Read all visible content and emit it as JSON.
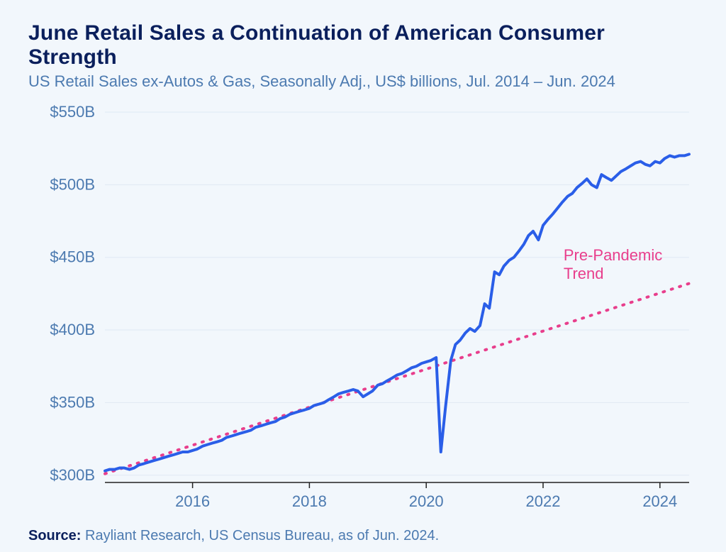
{
  "title": "June Retail Sales a Continuation of American Consumer Strength",
  "subtitle": "US Retail Sales ex-Autos & Gas, Seasonally Adj., US$ billions, Jul. 2014 – Jun. 2024",
  "source_label": "Source:",
  "source_text": " Rayliant Research, US Census Bureau, as of Jun. 2024.",
  "chart": {
    "type": "line",
    "background_color": "#f2f7fc",
    "grid_color": "#dfe8f3",
    "axis_color": "#222222",
    "ylim": [
      295,
      550
    ],
    "ytick_values": [
      300,
      350,
      400,
      450,
      500,
      550
    ],
    "ytick_labels": [
      "$300B",
      "$350B",
      "$400B",
      "$450B",
      "$500B",
      "$550B"
    ],
    "xlim": [
      2014.5,
      2024.5
    ],
    "xtick_values": [
      2016,
      2018,
      2020,
      2022,
      2024
    ],
    "xtick_labels": [
      "2016",
      "2018",
      "2020",
      "2022",
      "2024"
    ],
    "tick_fontsize": 22,
    "tick_color": "#4c7ab0",
    "series_actual": {
      "color": "#2a5ee8",
      "width": 4,
      "data": [
        [
          2014.5,
          303
        ],
        [
          2014.58,
          304
        ],
        [
          2014.67,
          304
        ],
        [
          2014.75,
          305
        ],
        [
          2014.83,
          305
        ],
        [
          2014.92,
          304
        ],
        [
          2015.0,
          305
        ],
        [
          2015.08,
          307
        ],
        [
          2015.17,
          308
        ],
        [
          2015.25,
          309
        ],
        [
          2015.33,
          310
        ],
        [
          2015.42,
          311
        ],
        [
          2015.5,
          312
        ],
        [
          2015.58,
          313
        ],
        [
          2015.67,
          314
        ],
        [
          2015.75,
          315
        ],
        [
          2015.83,
          316
        ],
        [
          2015.92,
          316
        ],
        [
          2016.0,
          317
        ],
        [
          2016.08,
          318
        ],
        [
          2016.17,
          320
        ],
        [
          2016.25,
          321
        ],
        [
          2016.33,
          322
        ],
        [
          2016.42,
          323
        ],
        [
          2016.5,
          324
        ],
        [
          2016.58,
          326
        ],
        [
          2016.67,
          327
        ],
        [
          2016.75,
          328
        ],
        [
          2016.83,
          329
        ],
        [
          2016.92,
          330
        ],
        [
          2017.0,
          331
        ],
        [
          2017.08,
          333
        ],
        [
          2017.17,
          334
        ],
        [
          2017.25,
          335
        ],
        [
          2017.33,
          336
        ],
        [
          2017.42,
          337
        ],
        [
          2017.5,
          339
        ],
        [
          2017.58,
          340
        ],
        [
          2017.67,
          342
        ],
        [
          2017.75,
          343
        ],
        [
          2017.83,
          344
        ],
        [
          2017.92,
          345
        ],
        [
          2018.0,
          346
        ],
        [
          2018.08,
          348
        ],
        [
          2018.17,
          349
        ],
        [
          2018.25,
          350
        ],
        [
          2018.33,
          352
        ],
        [
          2018.42,
          354
        ],
        [
          2018.5,
          356
        ],
        [
          2018.58,
          357
        ],
        [
          2018.67,
          358
        ],
        [
          2018.75,
          359
        ],
        [
          2018.83,
          358
        ],
        [
          2018.92,
          354
        ],
        [
          2019.0,
          356
        ],
        [
          2019.08,
          358
        ],
        [
          2019.17,
          362
        ],
        [
          2019.25,
          363
        ],
        [
          2019.33,
          365
        ],
        [
          2019.42,
          367
        ],
        [
          2019.5,
          369
        ],
        [
          2019.58,
          370
        ],
        [
          2019.67,
          372
        ],
        [
          2019.75,
          374
        ],
        [
          2019.83,
          375
        ],
        [
          2019.92,
          377
        ],
        [
          2020.0,
          378
        ],
        [
          2020.08,
          379
        ],
        [
          2020.17,
          381
        ],
        [
          2020.25,
          316
        ],
        [
          2020.33,
          347
        ],
        [
          2020.42,
          379
        ],
        [
          2020.5,
          390
        ],
        [
          2020.58,
          393
        ],
        [
          2020.67,
          398
        ],
        [
          2020.75,
          401
        ],
        [
          2020.83,
          399
        ],
        [
          2020.92,
          403
        ],
        [
          2021.0,
          418
        ],
        [
          2021.08,
          415
        ],
        [
          2021.17,
          440
        ],
        [
          2021.25,
          438
        ],
        [
          2021.33,
          444
        ],
        [
          2021.42,
          448
        ],
        [
          2021.5,
          450
        ],
        [
          2021.58,
          454
        ],
        [
          2021.67,
          459
        ],
        [
          2021.75,
          465
        ],
        [
          2021.83,
          468
        ],
        [
          2021.92,
          462
        ],
        [
          2022.0,
          472
        ],
        [
          2022.08,
          476
        ],
        [
          2022.17,
          480
        ],
        [
          2022.25,
          484
        ],
        [
          2022.33,
          488
        ],
        [
          2022.42,
          492
        ],
        [
          2022.5,
          494
        ],
        [
          2022.58,
          498
        ],
        [
          2022.67,
          501
        ],
        [
          2022.75,
          504
        ],
        [
          2022.83,
          500
        ],
        [
          2022.92,
          498
        ],
        [
          2023.0,
          507
        ],
        [
          2023.08,
          505
        ],
        [
          2023.17,
          503
        ],
        [
          2023.25,
          506
        ],
        [
          2023.33,
          509
        ],
        [
          2023.42,
          511
        ],
        [
          2023.5,
          513
        ],
        [
          2023.58,
          515
        ],
        [
          2023.67,
          516
        ],
        [
          2023.75,
          514
        ],
        [
          2023.83,
          513
        ],
        [
          2023.92,
          516
        ],
        [
          2024.0,
          515
        ],
        [
          2024.08,
          518
        ],
        [
          2024.17,
          520
        ],
        [
          2024.25,
          519
        ],
        [
          2024.33,
          520
        ],
        [
          2024.42,
          520
        ],
        [
          2024.5,
          521
        ]
      ]
    },
    "series_trend": {
      "color": "#e83e8c",
      "width": 4,
      "dash": "2 10",
      "label": "Pre-Pandemic\nTrend",
      "label_xy": [
        2022.35,
        448
      ],
      "data": [
        [
          2014.5,
          301
        ],
        [
          2024.5,
          432
        ]
      ]
    }
  }
}
